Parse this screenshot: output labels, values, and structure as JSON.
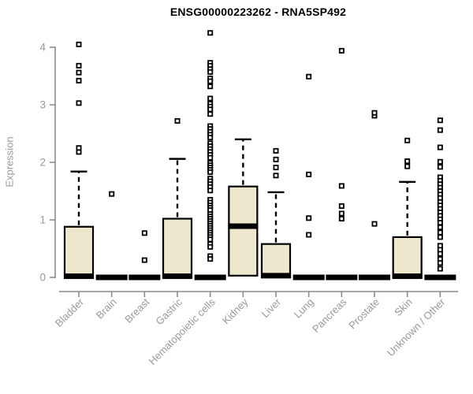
{
  "header": {
    "title": "ENSG00000223262 - RNA5SP492"
  },
  "colors": {
    "box_fill": "#EDE7CE",
    "box_stroke": "#000000",
    "median_color": "#000000",
    "whisker_color": "#000000",
    "outlier_color": "#000000",
    "axis_color": "#8C8C8C",
    "label_color": "#999999",
    "title_color": "#000000",
    "background": "#FFFFFF"
  },
  "chart_data": {
    "type": "boxplot",
    "title": "ENSG00000223262 - RNA5SP492",
    "xlabel": "",
    "ylabel": "Expression",
    "ylim": [
      0,
      4.3
    ],
    "y_ticks": [
      0,
      1,
      2,
      3,
      4
    ],
    "grid": false,
    "legend": "none",
    "categories": [
      "Bladder",
      "Brain",
      "Breast",
      "Gastric",
      "Hematopoietic cells",
      "Kidney",
      "Liver",
      "Lung",
      "Pancreas",
      "Prostate",
      "Skin",
      "Unknown / Other"
    ],
    "series": [
      {
        "category": "Bladder",
        "q1": 0,
        "median": 0.02,
        "q3": 0.88,
        "whisker_low": 0,
        "whisker_high": 1.84,
        "outliers": [
          2.18,
          2.25,
          3.03,
          3.42,
          3.56,
          3.68,
          4.05
        ]
      },
      {
        "category": "Brain",
        "q1": 0,
        "median": 0,
        "q3": 0,
        "whisker_low": 0,
        "whisker_high": 0,
        "outliers": [
          1.45
        ]
      },
      {
        "category": "Breast",
        "q1": 0,
        "median": 0,
        "q3": 0,
        "whisker_low": 0,
        "whisker_high": 0,
        "outliers": [
          0.3,
          0.77
        ]
      },
      {
        "category": "Gastric",
        "q1": 0,
        "median": 0.02,
        "q3": 1.02,
        "whisker_low": 0,
        "whisker_high": 2.06,
        "outliers": [
          2.72
        ]
      },
      {
        "category": "Hematopoietic cells",
        "q1": 0,
        "median": 0,
        "q3": 0,
        "whisker_low": 0,
        "whisker_high": 0,
        "outliers": [
          4.25,
          3.73,
          3.68,
          3.62,
          3.57,
          3.46,
          3.41,
          3.32,
          3.11,
          3.02,
          2.97,
          2.92,
          2.84,
          2.63,
          2.58,
          2.53,
          2.48,
          2.43,
          2.33,
          2.28,
          2.23,
          2.18,
          2.13,
          2.08,
          1.99,
          1.95,
          1.91,
          1.87,
          1.83,
          1.72,
          1.67,
          1.62,
          1.57,
          1.51,
          1.35,
          1.3,
          1.25,
          1.21,
          1.17,
          1.1,
          1.06,
          1.02,
          0.98,
          0.94,
          0.9,
          0.86,
          0.82,
          0.78,
          0.74,
          0.7,
          0.66,
          0.58,
          0.53,
          0.37,
          0.32
        ]
      },
      {
        "category": "Kidney",
        "q1": 0.03,
        "median": 0.89,
        "q3": 1.58,
        "whisker_low": 0.03,
        "whisker_high": 2.4,
        "outliers": []
      },
      {
        "category": "Liver",
        "q1": 0,
        "median": 0.03,
        "q3": 0.58,
        "whisker_low": 0,
        "whisker_high": 1.48,
        "outliers": [
          1.77,
          1.91,
          2.05,
          2.2
        ]
      },
      {
        "category": "Lung",
        "q1": 0,
        "median": 0,
        "q3": 0,
        "whisker_low": 0,
        "whisker_high": 0,
        "outliers": [
          0.74,
          1.03,
          1.79,
          3.49
        ]
      },
      {
        "category": "Pancreas",
        "q1": 0,
        "median": 0,
        "q3": 0,
        "whisker_low": 0,
        "whisker_high": 0,
        "outliers": [
          1.02,
          1.11,
          1.24,
          1.59,
          3.94
        ]
      },
      {
        "category": "Prostate",
        "q1": 0,
        "median": 0,
        "q3": 0,
        "whisker_low": 0,
        "whisker_high": 0,
        "outliers": [
          0.93,
          2.81,
          2.86
        ]
      },
      {
        "category": "Skin",
        "q1": 0,
        "median": 0.02,
        "q3": 0.7,
        "whisker_low": 0,
        "whisker_high": 1.66,
        "outliers": [
          1.93,
          2.02,
          2.38
        ]
      },
      {
        "category": "Unknown / Other",
        "q1": 0,
        "median": 0,
        "q3": 0,
        "whisker_low": 0,
        "whisker_high": 0,
        "outliers": [
          2.73,
          2.56,
          2.26,
          2.01,
          1.92,
          1.74,
          1.68,
          1.62,
          1.56,
          1.5,
          1.44,
          1.38,
          1.31,
          1.25,
          1.19,
          1.13,
          1.07,
          1.01,
          0.95,
          0.87,
          0.78,
          0.7,
          0.55,
          0.48,
          0.41,
          0.32,
          0.25,
          0.15
        ]
      }
    ]
  }
}
